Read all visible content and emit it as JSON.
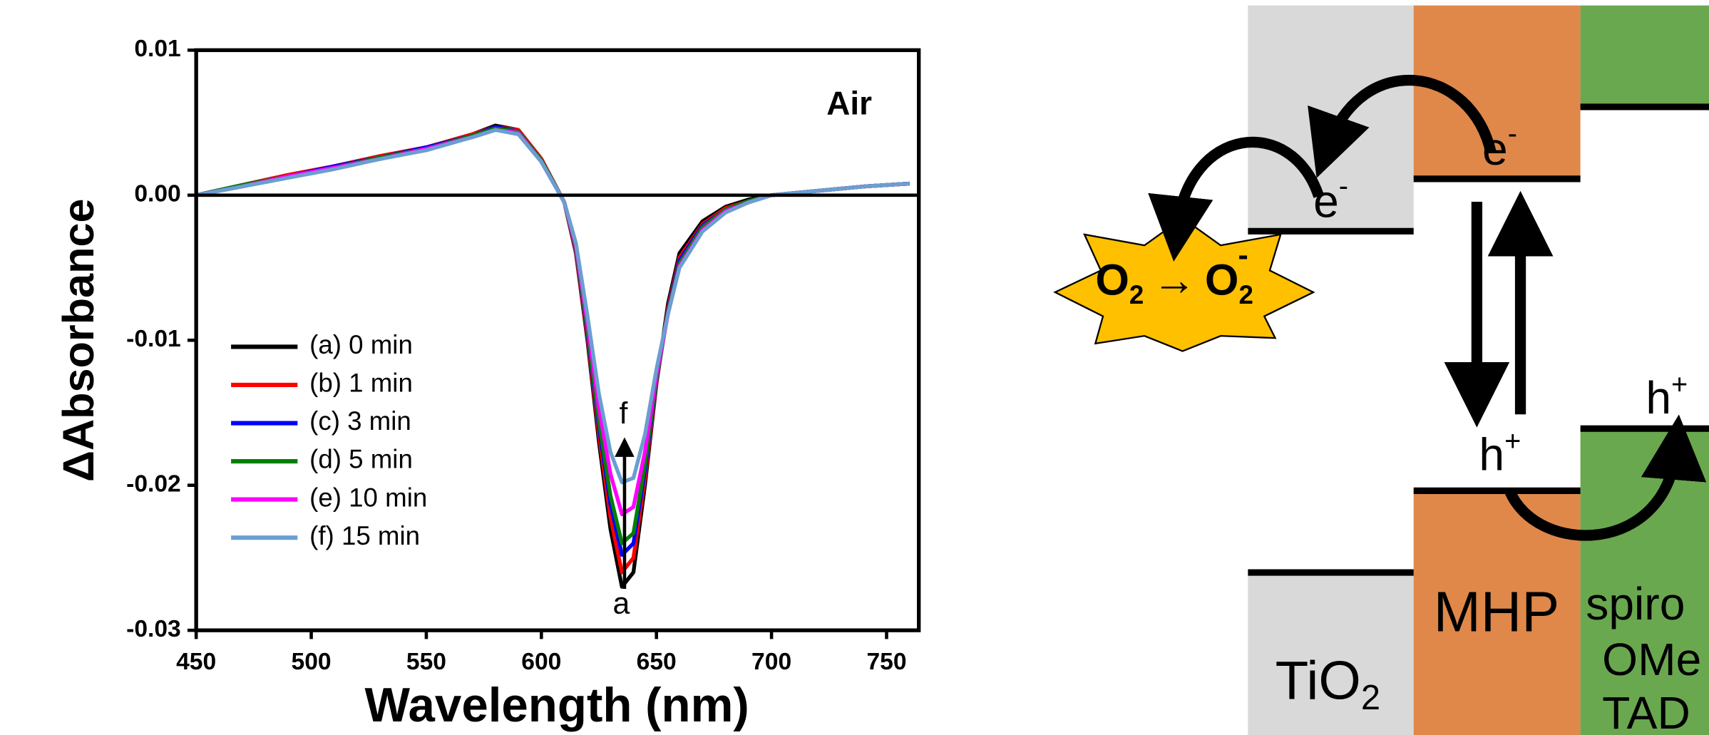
{
  "chart_data": {
    "type": "line",
    "x_label": "Wavelength (nm)",
    "y_label": "ΔAbsorbance",
    "annotations": [
      "Air",
      "f",
      "a"
    ],
    "x": [
      450,
      470,
      490,
      510,
      530,
      550,
      570,
      580,
      590,
      600,
      610,
      615,
      620,
      625,
      630,
      635,
      640,
      645,
      650,
      655,
      660,
      670,
      680,
      690,
      700,
      720,
      740,
      760
    ],
    "series": [
      {
        "name": "(a) 0 min",
        "color": "#000000",
        "values": [
          0.0,
          0.0007,
          0.0014,
          0.002,
          0.0027,
          0.0033,
          0.0042,
          0.0048,
          0.0045,
          0.0025,
          -0.0005,
          -0.004,
          -0.01,
          -0.017,
          -0.023,
          -0.027,
          -0.026,
          -0.02,
          -0.013,
          -0.0075,
          -0.004,
          -0.0018,
          -0.0008,
          -0.0003,
          0.0,
          0.0003,
          0.0006,
          0.0008
        ]
      },
      {
        "name": "(b) 1 min",
        "color": "#ff0000",
        "values": [
          0.0,
          0.0007,
          0.0014,
          0.002,
          0.0027,
          0.0033,
          0.0042,
          0.0047,
          0.0045,
          0.0025,
          -0.0005,
          -0.004,
          -0.0098,
          -0.0165,
          -0.0222,
          -0.026,
          -0.025,
          -0.0195,
          -0.013,
          -0.0078,
          -0.0043,
          -0.002,
          -0.0009,
          -0.0004,
          0.0,
          0.0003,
          0.0006,
          0.0008
        ]
      },
      {
        "name": "(c) 3 min",
        "color": "#0000ff",
        "values": [
          0.0,
          0.0007,
          0.0013,
          0.002,
          0.0026,
          0.0033,
          0.0041,
          0.0047,
          0.0044,
          0.0024,
          -0.0005,
          -0.0038,
          -0.0095,
          -0.016,
          -0.0213,
          -0.0248,
          -0.024,
          -0.019,
          -0.0128,
          -0.008,
          -0.0045,
          -0.0021,
          -0.001,
          -0.0004,
          0.0,
          0.0003,
          0.0006,
          0.0008
        ]
      },
      {
        "name": "(d) 5 min",
        "color": "#008000",
        "values": [
          0.0,
          0.0007,
          0.0013,
          0.0019,
          0.0026,
          0.0032,
          0.0041,
          0.0046,
          0.0044,
          0.0024,
          -0.0005,
          -0.0037,
          -0.0093,
          -0.0156,
          -0.0207,
          -0.024,
          -0.0233,
          -0.0186,
          -0.0127,
          -0.0081,
          -0.0047,
          -0.0022,
          -0.001,
          -0.0004,
          0.0,
          0.0003,
          0.0006,
          0.0008
        ]
      },
      {
        "name": "(e) 10 min",
        "color": "#ff00ff",
        "values": [
          0.0,
          0.0006,
          0.0013,
          0.0019,
          0.0025,
          0.0032,
          0.004,
          0.0045,
          0.0043,
          0.0023,
          -0.0005,
          -0.0035,
          -0.0088,
          -0.0147,
          -0.0192,
          -0.022,
          -0.0215,
          -0.0177,
          -0.0124,
          -0.0082,
          -0.0049,
          -0.0024,
          -0.0011,
          -0.0005,
          0.0,
          0.0003,
          0.0006,
          0.0008
        ]
      },
      {
        "name": "(f) 15 min",
        "color": "#6a9fd0",
        "values": [
          0.0,
          0.0006,
          0.0012,
          0.0018,
          0.0025,
          0.0031,
          0.004,
          0.0045,
          0.0042,
          0.0023,
          -0.0005,
          -0.0033,
          -0.0083,
          -0.0137,
          -0.0177,
          -0.0198,
          -0.0195,
          -0.0165,
          -0.012,
          -0.0082,
          -0.005,
          -0.0025,
          -0.0012,
          -0.0005,
          0.0,
          0.0003,
          0.0006,
          0.0008
        ]
      }
    ],
    "xlim": [
      450,
      764
    ],
    "ylim": [
      -0.03,
      0.01
    ],
    "xticks": [
      450,
      500,
      550,
      600,
      650,
      700,
      750
    ],
    "yticks": [
      -0.03,
      -0.02,
      -0.01,
      {
        "value": 0,
        "label": "0.00"
      },
      0.01
    ],
    "zero_line": true,
    "legend": "lower-left",
    "grid": false
  },
  "diagram": {
    "tio2_electron": {
      "base": "e",
      "sup": "-"
    },
    "mhp_electron": {
      "base": "e",
      "sup": "-"
    },
    "reaction": {
      "reactant": "O",
      "reactant_sub": "2",
      "arrow": "→",
      "product": "O",
      "product_sub": "2",
      "product_sup": "-"
    },
    "mhp_hole": {
      "base": "h",
      "sup": "+"
    },
    "htl_hole": {
      "base": "h",
      "sup": "+"
    },
    "mhp": "MHP",
    "tio2": {
      "base": "TiO",
      "sub": "2"
    },
    "htl": [
      "spiro",
      "OMe",
      "TAD"
    ]
  }
}
